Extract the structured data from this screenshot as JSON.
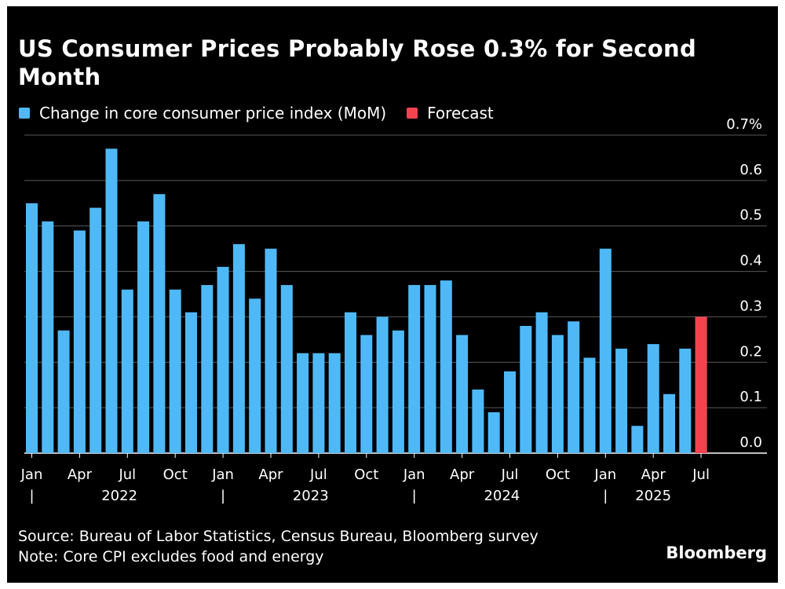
{
  "header": {
    "title": "US Consumer Prices Probably Rose 0.3% for Second Month"
  },
  "legend": {
    "items": [
      {
        "label": "Change in core consumer price index (MoM)",
        "color": "#4fb9f7"
      },
      {
        "label": "Forecast",
        "color": "#f4434f"
      }
    ]
  },
  "chart_data": {
    "type": "bar",
    "title": "US Consumer Prices Probably Rose 0.3% for Second Month",
    "ylim": [
      0,
      0.7
    ],
    "yticks": [
      0,
      0.1,
      0.2,
      0.3,
      0.4,
      0.5,
      0.6,
      0.7
    ],
    "ytick_labels": [
      "0.0",
      "0.1",
      "0.2",
      "0.3",
      "0.4",
      "0.5",
      "0.6",
      "0.7%"
    ],
    "y_axis_side": "right",
    "grid": true,
    "month_tick_labels": [
      "Jan",
      "Apr",
      "Jul",
      "Oct",
      "Jan",
      "Apr",
      "Jul",
      "Oct",
      "Jan",
      "Apr",
      "Jul",
      "Oct",
      "Jan",
      "Apr",
      "Jul"
    ],
    "year_labels": [
      "2022",
      "2023",
      "2024",
      "2025"
    ],
    "year_separator": "|",
    "categories": [
      "2022-01",
      "2022-02",
      "2022-03",
      "2022-04",
      "2022-05",
      "2022-06",
      "2022-07",
      "2022-08",
      "2022-09",
      "2022-10",
      "2022-11",
      "2022-12",
      "2023-01",
      "2023-02",
      "2023-03",
      "2023-04",
      "2023-05",
      "2023-06",
      "2023-07",
      "2023-08",
      "2023-09",
      "2023-10",
      "2023-11",
      "2023-12",
      "2024-01",
      "2024-02",
      "2024-03",
      "2024-04",
      "2024-05",
      "2024-06",
      "2024-07",
      "2024-08",
      "2024-09",
      "2024-10",
      "2024-11",
      "2024-12",
      "2025-01",
      "2025-02",
      "2025-03",
      "2025-04",
      "2025-05",
      "2025-06",
      "2025-07"
    ],
    "series": [
      {
        "name": "Change in core consumer price index (MoM)",
        "color": "#4fb9f7",
        "values": [
          0.55,
          0.51,
          0.27,
          0.49,
          0.54,
          0.67,
          0.36,
          0.51,
          0.57,
          0.36,
          0.31,
          0.37,
          0.41,
          0.46,
          0.34,
          0.45,
          0.37,
          0.22,
          0.22,
          0.22,
          0.31,
          0.26,
          0.3,
          0.27,
          0.37,
          0.37,
          0.38,
          0.26,
          0.14,
          0.09,
          0.18,
          0.28,
          0.31,
          0.26,
          0.29,
          0.21,
          0.45,
          0.23,
          0.06,
          0.24,
          0.13,
          0.23,
          0.3
        ]
      },
      {
        "name": "Forecast",
        "color": "#f4434f",
        "values": [
          null,
          null,
          null,
          null,
          null,
          null,
          null,
          null,
          null,
          null,
          null,
          null,
          null,
          null,
          null,
          null,
          null,
          null,
          null,
          null,
          null,
          null,
          null,
          null,
          null,
          null,
          null,
          null,
          null,
          null,
          null,
          null,
          null,
          null,
          null,
          null,
          null,
          null,
          null,
          null,
          null,
          null,
          0.3
        ]
      }
    ]
  },
  "footer": {
    "source": "Source: Bureau of Labor Statistics, Census Bureau, Bloomberg survey",
    "note": "Note: Core CPI excludes food and energy"
  },
  "brand": "Bloomberg"
}
